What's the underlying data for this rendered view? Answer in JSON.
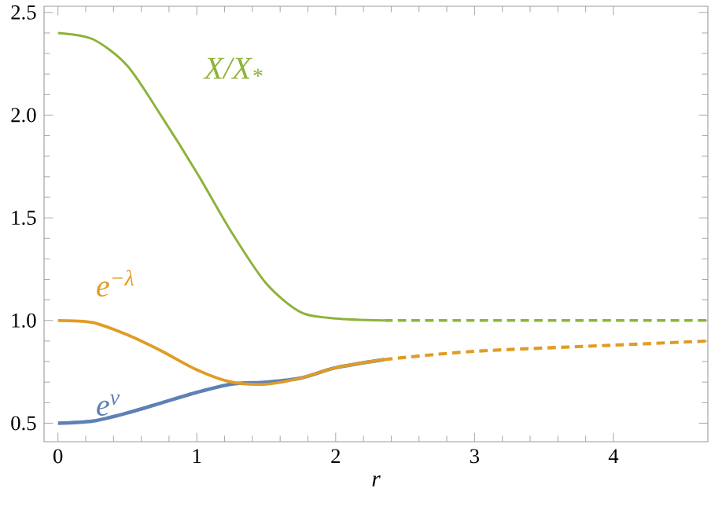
{
  "chart_data": {
    "type": "line",
    "xlabel": "r",
    "xlim": [
      -0.1,
      4.68
    ],
    "ylim": [
      0.41,
      2.53
    ],
    "xticks": [
      0,
      1,
      2,
      3,
      4
    ],
    "yticks": [
      0.5,
      {
        "value": 1.0,
        "label": "1.0"
      },
      1.5,
      {
        "value": 2.0,
        "label": "2.0"
      },
      2.5
    ],
    "grid": false,
    "series": [
      {
        "name": "X/X$_{*}$",
        "color": "#8db33a",
        "line_style": "solid",
        "x": [
          0,
          0.25,
          0.5,
          0.75,
          1.0,
          1.25,
          1.5,
          1.75,
          2.0,
          2.35
        ],
        "values": [
          2.4,
          2.37,
          2.24,
          1.99,
          1.72,
          1.43,
          1.18,
          1.04,
          1.01,
          1.0
        ]
      },
      {
        "color": "#8db33a",
        "line_style": "dashed",
        "x": [
          2.35,
          3,
          4,
          4.68
        ],
        "values": [
          1.0,
          1.0,
          1.0,
          1.0
        ]
      },
      {
        "name": "e$^{−λ}$",
        "color": "#e09c24",
        "line_style": "solid",
        "x": [
          0,
          0.25,
          0.5,
          0.75,
          1.0,
          1.25,
          1.5,
          1.75,
          2.0,
          2.35
        ],
        "values": [
          1.0,
          0.99,
          0.93,
          0.85,
          0.76,
          0.7,
          0.69,
          0.72,
          0.77,
          0.81
        ]
      },
      {
        "color": "#e09c24",
        "line_style": "dashed",
        "x": [
          2.35,
          3,
          4,
          4.68
        ],
        "values": [
          0.81,
          0.85,
          0.88,
          0.9
        ]
      },
      {
        "name": "e$^{ν}$",
        "color": "#5e81b5",
        "line_style": "solid",
        "x": [
          0,
          0.25,
          0.5,
          0.75,
          1.0,
          1.25,
          1.5,
          1.75,
          2.0,
          2.35
        ],
        "values": [
          0.5,
          0.51,
          0.55,
          0.6,
          0.65,
          0.69,
          0.7,
          0.72,
          0.77,
          0.81
        ]
      }
    ]
  }
}
